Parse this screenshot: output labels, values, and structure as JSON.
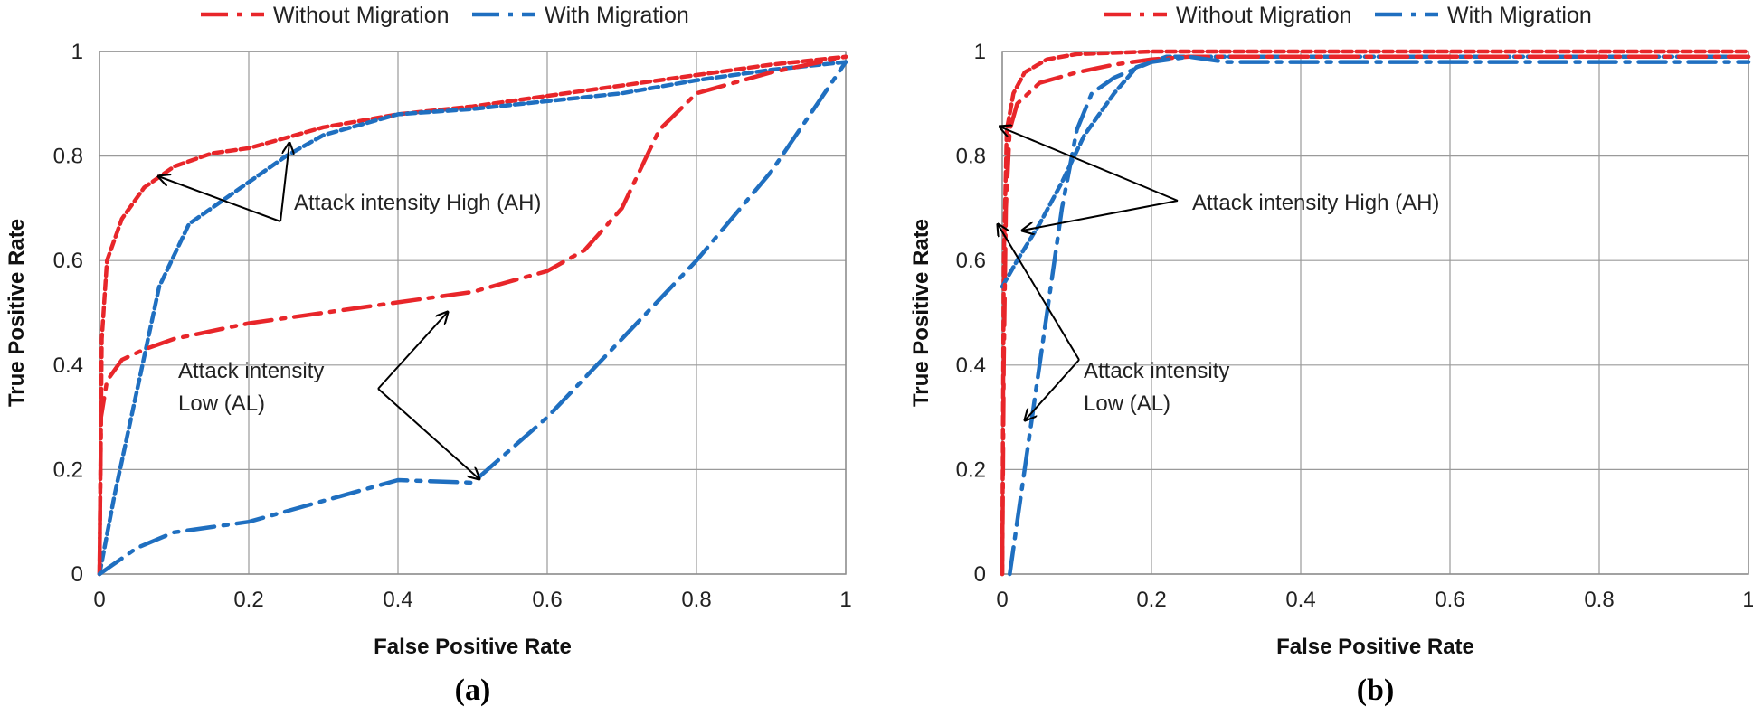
{
  "colors": {
    "without_migration": "#e8262a",
    "with_migration": "#1f6fc0"
  },
  "chart_data": [
    {
      "type": "line",
      "panel_label": "(a)",
      "xlabel": "False Positive Rate",
      "ylabel": "True Positive Rate",
      "xlim": [
        0,
        1
      ],
      "ylim": [
        0,
        1
      ],
      "x_ticks": [
        "0",
        "0.2",
        "0.4",
        "0.6",
        "0.8",
        "1"
      ],
      "y_ticks": [
        "0",
        "0.2",
        "0.4",
        "0.6",
        "0.8",
        "1"
      ],
      "grid": true,
      "legend": {
        "position": "top",
        "entries": [
          "Without Migration",
          "With Migration"
        ]
      },
      "annotations": [
        {
          "lines": [
            "Attack intensity High (AH)"
          ]
        },
        {
          "lines": [
            "Attack intensity",
            "Low (AL)"
          ]
        }
      ],
      "series": [
        {
          "name": "Without Migration",
          "intensity": "AH",
          "style": "dashed",
          "points": [
            [
              0,
              0
            ],
            [
              0.003,
              0.45
            ],
            [
              0.01,
              0.6
            ],
            [
              0.03,
              0.68
            ],
            [
              0.06,
              0.74
            ],
            [
              0.1,
              0.78
            ],
            [
              0.15,
              0.805
            ],
            [
              0.2,
              0.815
            ],
            [
              0.25,
              0.835
            ],
            [
              0.3,
              0.855
            ],
            [
              0.4,
              0.88
            ],
            [
              0.5,
              0.895
            ],
            [
              0.6,
              0.915
            ],
            [
              0.7,
              0.935
            ],
            [
              0.8,
              0.955
            ],
            [
              0.9,
              0.975
            ],
            [
              1,
              0.99
            ]
          ]
        },
        {
          "name": "With Migration",
          "intensity": "AH",
          "style": "dashed",
          "points": [
            [
              0,
              0
            ],
            [
              0.02,
              0.15
            ],
            [
              0.05,
              0.35
            ],
            [
              0.08,
              0.55
            ],
            [
              0.12,
              0.67
            ],
            [
              0.2,
              0.75
            ],
            [
              0.25,
              0.8
            ],
            [
              0.3,
              0.84
            ],
            [
              0.4,
              0.88
            ],
            [
              0.5,
              0.89
            ],
            [
              0.6,
              0.905
            ],
            [
              0.7,
              0.92
            ],
            [
              0.8,
              0.945
            ],
            [
              0.9,
              0.965
            ],
            [
              1,
              0.98
            ]
          ]
        },
        {
          "name": "Without Migration",
          "intensity": "AL",
          "style": "dash-dot",
          "points": [
            [
              0,
              0
            ],
            [
              0.002,
              0.3
            ],
            [
              0.01,
              0.37
            ],
            [
              0.03,
              0.41
            ],
            [
              0.06,
              0.43
            ],
            [
              0.1,
              0.45
            ],
            [
              0.2,
              0.48
            ],
            [
              0.3,
              0.5
            ],
            [
              0.4,
              0.52
            ],
            [
              0.5,
              0.54
            ],
            [
              0.6,
              0.58
            ],
            [
              0.65,
              0.62
            ],
            [
              0.7,
              0.7
            ],
            [
              0.75,
              0.85
            ],
            [
              0.8,
              0.92
            ],
            [
              0.9,
              0.96
            ],
            [
              1,
              0.99
            ]
          ]
        },
        {
          "name": "With Migration",
          "intensity": "AL",
          "style": "dash-dot",
          "points": [
            [
              0,
              0
            ],
            [
              0.05,
              0.05
            ],
            [
              0.1,
              0.08
            ],
            [
              0.15,
              0.09
            ],
            [
              0.2,
              0.1
            ],
            [
              0.3,
              0.14
            ],
            [
              0.4,
              0.18
            ],
            [
              0.5,
              0.175
            ],
            [
              0.6,
              0.3
            ],
            [
              0.7,
              0.45
            ],
            [
              0.8,
              0.6
            ],
            [
              0.9,
              0.77
            ],
            [
              1,
              0.98
            ]
          ]
        }
      ]
    },
    {
      "type": "line",
      "panel_label": "(b)",
      "xlabel": "False Positive Rate",
      "ylabel": "True Positive Rate",
      "xlim": [
        0,
        1
      ],
      "ylim": [
        0,
        1
      ],
      "x_ticks": [
        "0",
        "0.2",
        "0.4",
        "0.6",
        "0.8",
        "1"
      ],
      "y_ticks": [
        "0",
        "0.2",
        "0.4",
        "0.6",
        "0.8",
        "1"
      ],
      "grid": true,
      "legend": {
        "position": "top",
        "entries": [
          "Without Migration",
          "With Migration"
        ]
      },
      "annotations": [
        {
          "lines": [
            "Attack intensity High (AH)"
          ]
        },
        {
          "lines": [
            "Attack intensity",
            "Low (AL)"
          ]
        }
      ],
      "series": [
        {
          "name": "Without Migration",
          "intensity": "AH",
          "style": "dashed",
          "points": [
            [
              0,
              0
            ],
            [
              0.002,
              0.6
            ],
            [
              0.006,
              0.85
            ],
            [
              0.015,
              0.92
            ],
            [
              0.03,
              0.96
            ],
            [
              0.06,
              0.985
            ],
            [
              0.1,
              0.995
            ],
            [
              0.2,
              1
            ],
            [
              1,
              1
            ]
          ]
        },
        {
          "name": "With Migration",
          "intensity": "AH",
          "style": "dashed",
          "points": [
            [
              0,
              0.55
            ],
            [
              0.02,
              0.6
            ],
            [
              0.05,
              0.67
            ],
            [
              0.08,
              0.75
            ],
            [
              0.11,
              0.84
            ],
            [
              0.15,
              0.92
            ],
            [
              0.18,
              0.97
            ],
            [
              0.22,
              0.99
            ],
            [
              0.3,
              0.99
            ],
            [
              1,
              0.99
            ]
          ]
        },
        {
          "name": "Without Migration",
          "intensity": "AL",
          "style": "dash-dot",
          "points": [
            [
              0,
              0
            ],
            [
              0.002,
              0.4
            ],
            [
              0.005,
              0.7
            ],
            [
              0.01,
              0.85
            ],
            [
              0.02,
              0.9
            ],
            [
              0.05,
              0.94
            ],
            [
              0.1,
              0.96
            ],
            [
              0.15,
              0.975
            ],
            [
              0.2,
              0.985
            ],
            [
              0.25,
              0.99
            ],
            [
              1,
              0.99
            ]
          ]
        },
        {
          "name": "With Migration",
          "intensity": "AL",
          "style": "dash-dot",
          "points": [
            [
              0.01,
              0
            ],
            [
              0.02,
              0.1
            ],
            [
              0.04,
              0.3
            ],
            [
              0.06,
              0.5
            ],
            [
              0.08,
              0.7
            ],
            [
              0.1,
              0.85
            ],
            [
              0.12,
              0.92
            ],
            [
              0.15,
              0.95
            ],
            [
              0.2,
              0.98
            ],
            [
              0.25,
              0.99
            ],
            [
              0.3,
              0.98
            ],
            [
              1,
              0.98
            ]
          ]
        }
      ]
    }
  ]
}
